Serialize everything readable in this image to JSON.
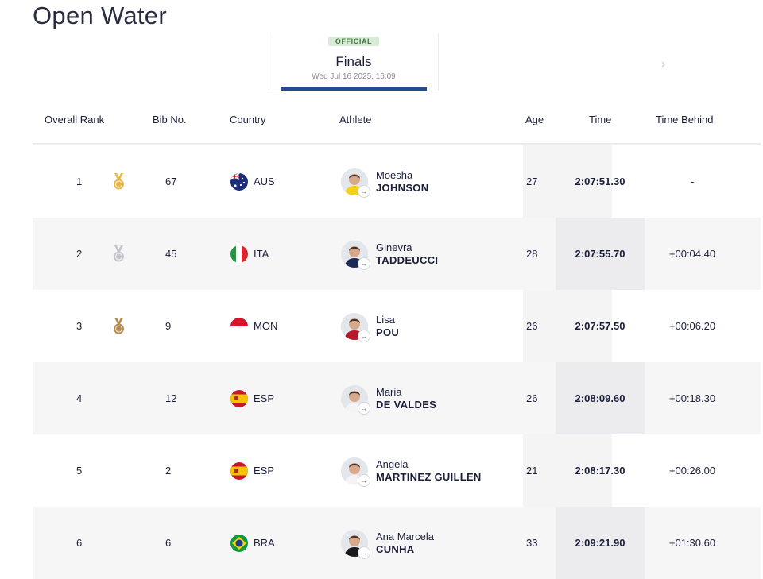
{
  "page": {
    "title": "Open Water"
  },
  "event": {
    "badge": "OFFICIAL",
    "name": "Finals",
    "date": "Wed Jul 16 2025, 16:09"
  },
  "nav": {
    "next_icon": "chevron-right-icon"
  },
  "table": {
    "headers": {
      "rank": "Overall Rank",
      "bib": "Bib No.",
      "country": "Country",
      "athlete": "Athlete",
      "age": "Age",
      "time": "Time",
      "behind": "Time Behind"
    },
    "rows": [
      {
        "rank": "1",
        "medal": "gold",
        "bib": "67",
        "country": "AUS",
        "flag": "aus",
        "first": "Moesha",
        "last": "JOHNSON",
        "age": "27",
        "time": "2:07:51.30",
        "behind": "-",
        "kit": "#f2d21b"
      },
      {
        "rank": "2",
        "medal": "silver",
        "bib": "45",
        "country": "ITA",
        "flag": "ita",
        "first": "Ginevra",
        "last": "TADDEUCCI",
        "age": "28",
        "time": "2:07:55.70",
        "behind": "+00:04.40",
        "kit": "#1c2a56"
      },
      {
        "rank": "3",
        "medal": "bronze",
        "bib": "9",
        "country": "MON",
        "flag": "mon",
        "first": "Lisa",
        "last": "POU",
        "age": "26",
        "time": "2:07:57.50",
        "behind": "+00:06.20",
        "kit": "#b5182a"
      },
      {
        "rank": "4",
        "medal": "",
        "bib": "12",
        "country": "ESP",
        "flag": "esp",
        "first": "Maria",
        "last": "DE VALDES",
        "age": "26",
        "time": "2:08:09.60",
        "behind": "+00:18.30",
        "kit": "#f4f4f4"
      },
      {
        "rank": "5",
        "medal": "",
        "bib": "2",
        "country": "ESP",
        "flag": "esp",
        "first": "Angela",
        "last": "MARTINEZ GUILLEN",
        "age": "21",
        "time": "2:08:17.30",
        "behind": "+00:26.00",
        "kit": "#f4f4f4"
      },
      {
        "rank": "6",
        "medal": "",
        "bib": "6",
        "country": "BRA",
        "flag": "bra",
        "first": "Ana Marcela",
        "last": "CUNHA",
        "age": "33",
        "time": "2:09:21.90",
        "behind": "+01:30.60",
        "kit": "#1a1a1a"
      }
    ]
  },
  "colors": {
    "gold": "#e9b949",
    "silver": "#c4c6cc",
    "bronze": "#b38a4f",
    "accent_blue": "#214c92",
    "official_green": "#d9ecd8"
  }
}
